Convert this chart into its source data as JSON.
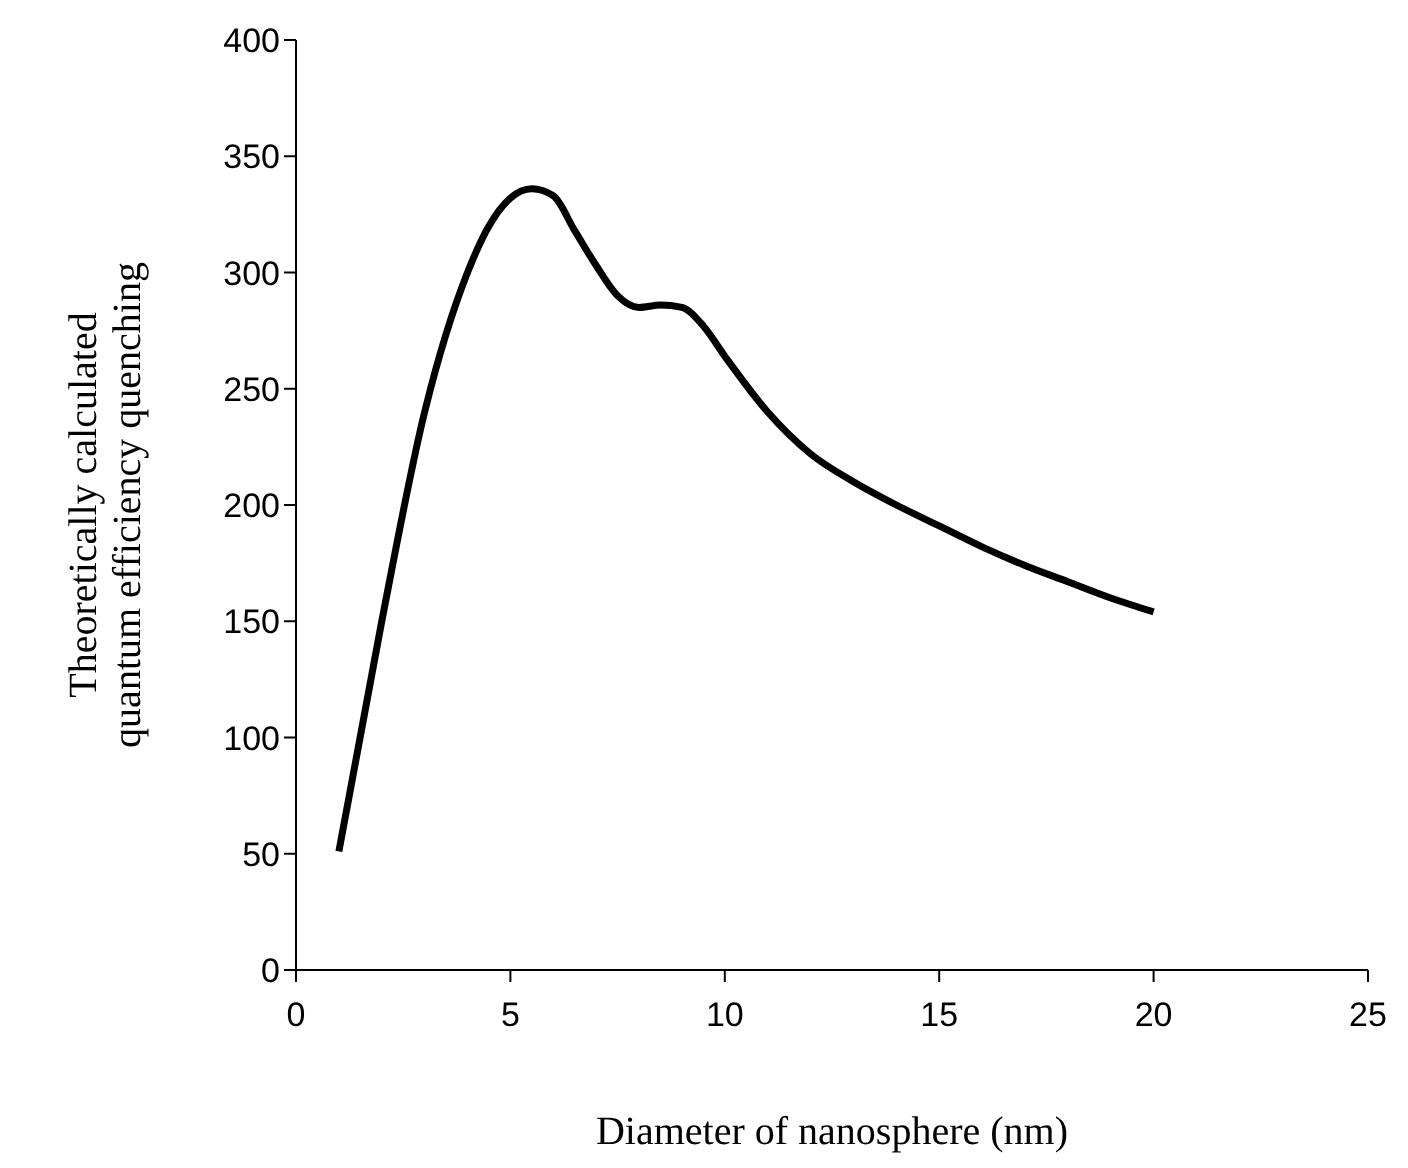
{
  "chart_data": {
    "type": "line",
    "xlabel": "Diameter of nanosphere (nm)",
    "ylabel": "Theoretically calculated quantum efficiency quenching",
    "x": [
      1,
      2,
      3,
      4,
      4.5,
      5,
      5.5,
      6,
      6.5,
      7,
      7.5,
      8,
      8.5,
      9,
      9.5,
      10,
      11,
      12,
      13,
      14,
      15,
      16,
      17,
      18,
      19,
      20
    ],
    "series": [
      {
        "color": "#000000",
        "values": [
          51,
          150,
          240,
          300,
          320,
          332,
          336,
          333,
          318,
          303,
          290,
          285,
          286,
          285,
          277,
          264,
          240,
          222,
          210,
          200,
          191,
          182,
          174,
          167,
          160,
          154
        ]
      }
    ],
    "xlim": [
      0,
      25
    ],
    "xticks": [
      0,
      5,
      10,
      15,
      20,
      25
    ],
    "ylim": [
      0,
      400
    ],
    "yticks": [
      0,
      50,
      100,
      150,
      200,
      250,
      300,
      350,
      400
    ],
    "grid": false,
    "marker": "none",
    "line_style": "solid"
  }
}
